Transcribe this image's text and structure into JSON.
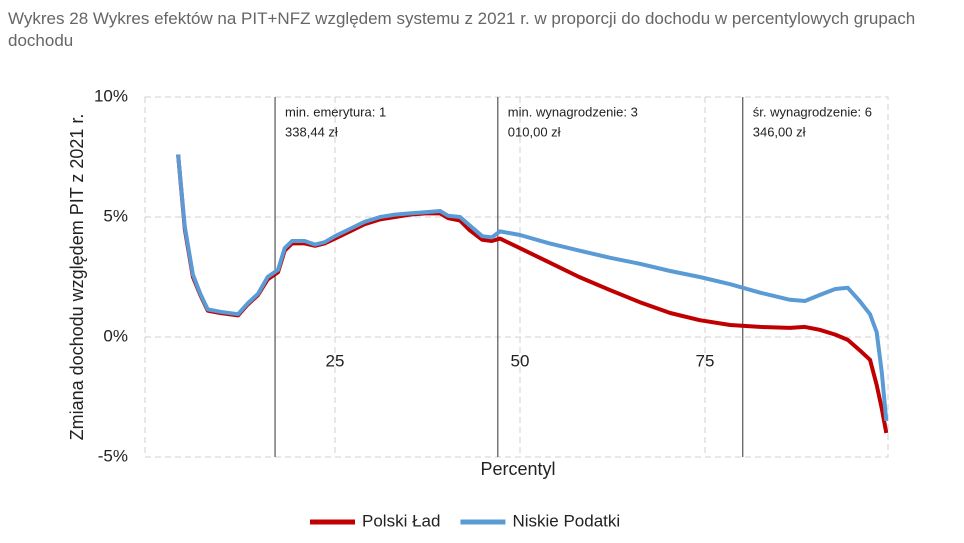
{
  "chart_data": {
    "type": "line",
    "title": "Wykres 28 Wykres efektów na PIT+NFZ względem systemu z 2021 r. w proporcji do dochodu w percentylowych grupach dochodu",
    "x_label": "Percentyl",
    "y_label": "Zmiana dochodu względem PIT z 2021 r.",
    "xlim": [
      0,
      100
    ],
    "xticks": [
      25,
      50,
      75
    ],
    "ylim": [
      -5,
      10
    ],
    "yticks": [
      {
        "value": 10,
        "label": "10%"
      },
      {
        "value": 5,
        "label": "5%"
      },
      {
        "value": 0,
        "label": "0%"
      },
      {
        "value": -5,
        "label": "-5%"
      }
    ],
    "grid": true,
    "annotations": [
      {
        "x": 16.9,
        "lines": [
          "min. emerytura: 1",
          "338,44 zł"
        ]
      },
      {
        "x": 47.0,
        "lines": [
          "min. wynagrodzenie: 3",
          "010,00 zł"
        ]
      },
      {
        "x": 80.1,
        "lines": [
          "śr. wynagrodzenie: 6",
          "346,00 zł"
        ]
      }
    ],
    "x": [
      3.8,
      4.7,
      5.8,
      6.8,
      7.8,
      9.5,
      11.9,
      13.2,
      14.6,
      15.9,
      17.3,
      18.2,
      19.2,
      20.9,
      22.3,
      23.6,
      25,
      27,
      29,
      31.1,
      33.1,
      35.1,
      37.2,
      39.2,
      40.3,
      41.9,
      43.2,
      44.9,
      46.2,
      47.3,
      50,
      54,
      58,
      62.2,
      66.2,
      70.3,
      74.3,
      78.4,
      82.4,
      86.5,
      88.5,
      90.5,
      92.6,
      94.3,
      95.9,
      97.3,
      98.2,
      98.9,
      99.5
    ],
    "series": [
      {
        "name": "Polski Ład",
        "color": "#c00000",
        "values": [
          7.6,
          4.5,
          2.5,
          1.75,
          1.1,
          1.0,
          0.9,
          1.35,
          1.75,
          2.4,
          2.7,
          3.6,
          3.9,
          3.9,
          3.8,
          3.9,
          4.1,
          4.4,
          4.7,
          4.9,
          5.0,
          5.1,
          5.15,
          5.15,
          4.95,
          4.85,
          4.45,
          4.05,
          4.0,
          4.1,
          3.7,
          3.1,
          2.5,
          1.95,
          1.45,
          1.0,
          0.7,
          0.5,
          0.42,
          0.38,
          0.42,
          0.3,
          0.1,
          -0.12,
          -0.55,
          -0.95,
          -2,
          -3,
          -4
        ]
      },
      {
        "name": "Niskie Podatki",
        "color": "#5b9bd5",
        "values": [
          7.6,
          4.6,
          2.6,
          1.8,
          1.15,
          1.05,
          0.95,
          1.4,
          1.8,
          2.5,
          2.8,
          3.7,
          4.0,
          4.0,
          3.85,
          3.95,
          4.2,
          4.5,
          4.8,
          5.0,
          5.1,
          5.15,
          5.2,
          5.25,
          5.05,
          5.0,
          4.65,
          4.2,
          4.15,
          4.4,
          4.25,
          3.9,
          3.6,
          3.3,
          3.05,
          2.75,
          2.5,
          2.2,
          1.85,
          1.55,
          1.5,
          1.75,
          2.0,
          2.05,
          1.5,
          0.95,
          0.2,
          -1.5,
          -3.5
        ]
      }
    ]
  }
}
